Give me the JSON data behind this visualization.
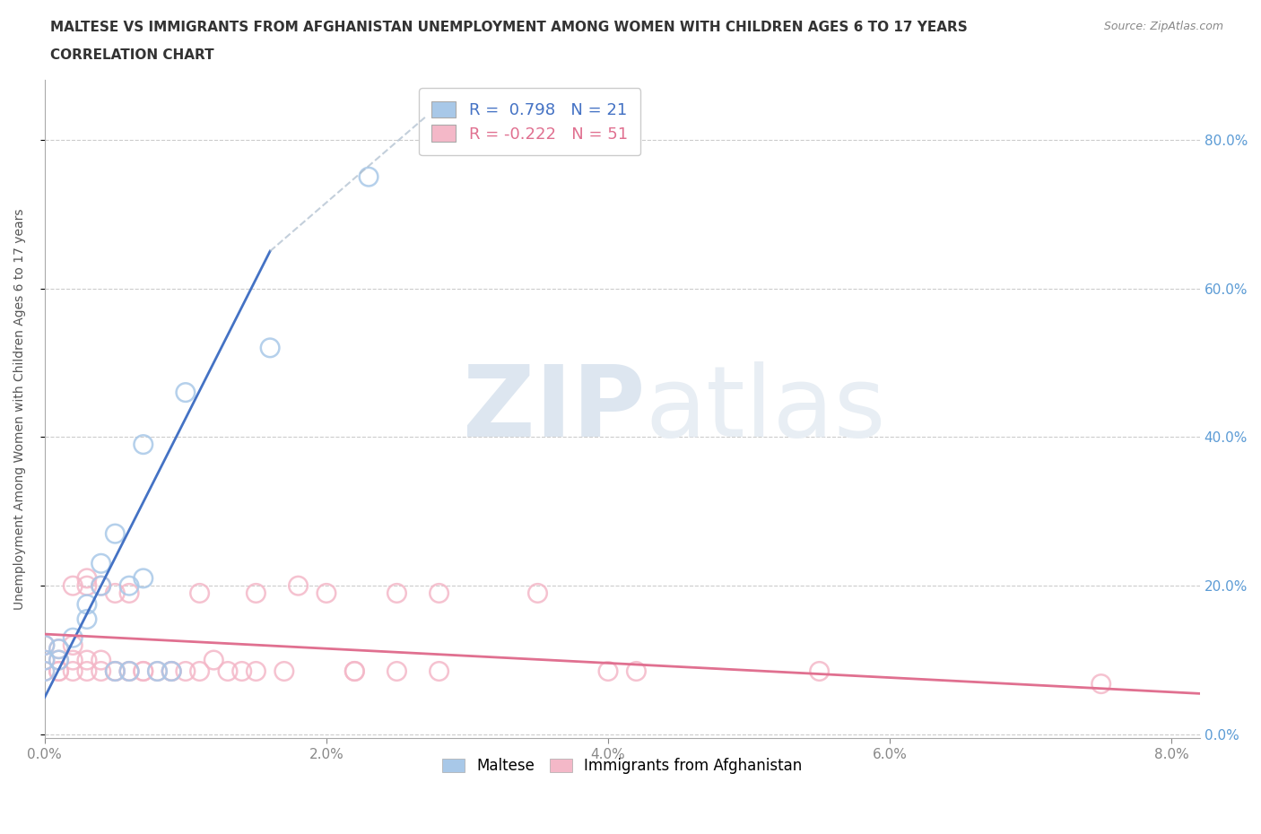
{
  "title_line1": "MALTESE VS IMMIGRANTS FROM AFGHANISTAN UNEMPLOYMENT AMONG WOMEN WITH CHILDREN AGES 6 TO 17 YEARS",
  "title_line2": "CORRELATION CHART",
  "source_text": "Source: ZipAtlas.com",
  "xlim": [
    0.0,
    0.082
  ],
  "ylim": [
    -0.005,
    0.88
  ],
  "ylabel": "Unemployment Among Women with Children Ages 6 to 17 years",
  "legend_maltese_R": "0.798",
  "legend_maltese_N": "21",
  "legend_afghan_R": "-0.222",
  "legend_afghan_N": "51",
  "maltese_color": "#a8c8e8",
  "afghan_color": "#f4b8c8",
  "maltese_line_color": "#4472c4",
  "afghan_line_color": "#e07090",
  "maltese_points": [
    [
      0.0,
      0.12
    ],
    [
      0.0,
      0.1
    ],
    [
      0.0,
      0.085
    ],
    [
      0.001,
      0.115
    ],
    [
      0.001,
      0.1
    ],
    [
      0.002,
      0.13
    ],
    [
      0.003,
      0.155
    ],
    [
      0.003,
      0.175
    ],
    [
      0.004,
      0.2
    ],
    [
      0.004,
      0.23
    ],
    [
      0.005,
      0.27
    ],
    [
      0.005,
      0.085
    ],
    [
      0.006,
      0.085
    ],
    [
      0.006,
      0.2
    ],
    [
      0.007,
      0.21
    ],
    [
      0.007,
      0.39
    ],
    [
      0.008,
      0.085
    ],
    [
      0.009,
      0.085
    ],
    [
      0.01,
      0.46
    ],
    [
      0.016,
      0.52
    ],
    [
      0.023,
      0.75
    ]
  ],
  "afghan_points": [
    [
      0.0,
      0.085
    ],
    [
      0.0,
      0.1
    ],
    [
      0.0,
      0.12
    ],
    [
      0.001,
      0.085
    ],
    [
      0.001,
      0.1
    ],
    [
      0.001,
      0.115
    ],
    [
      0.001,
      0.085
    ],
    [
      0.002,
      0.085
    ],
    [
      0.002,
      0.1
    ],
    [
      0.002,
      0.12
    ],
    [
      0.002,
      0.2
    ],
    [
      0.003,
      0.085
    ],
    [
      0.003,
      0.1
    ],
    [
      0.003,
      0.2
    ],
    [
      0.003,
      0.21
    ],
    [
      0.004,
      0.085
    ],
    [
      0.004,
      0.1
    ],
    [
      0.004,
      0.2
    ],
    [
      0.005,
      0.085
    ],
    [
      0.005,
      0.19
    ],
    [
      0.005,
      0.085
    ],
    [
      0.006,
      0.085
    ],
    [
      0.006,
      0.19
    ],
    [
      0.006,
      0.085
    ],
    [
      0.007,
      0.085
    ],
    [
      0.007,
      0.085
    ],
    [
      0.008,
      0.085
    ],
    [
      0.009,
      0.085
    ],
    [
      0.009,
      0.085
    ],
    [
      0.01,
      0.085
    ],
    [
      0.011,
      0.085
    ],
    [
      0.011,
      0.19
    ],
    [
      0.012,
      0.1
    ],
    [
      0.013,
      0.085
    ],
    [
      0.014,
      0.085
    ],
    [
      0.015,
      0.085
    ],
    [
      0.015,
      0.19
    ],
    [
      0.017,
      0.085
    ],
    [
      0.018,
      0.2
    ],
    [
      0.02,
      0.19
    ],
    [
      0.022,
      0.085
    ],
    [
      0.022,
      0.085
    ],
    [
      0.025,
      0.19
    ],
    [
      0.025,
      0.085
    ],
    [
      0.028,
      0.085
    ],
    [
      0.028,
      0.19
    ],
    [
      0.035,
      0.19
    ],
    [
      0.04,
      0.085
    ],
    [
      0.042,
      0.085
    ],
    [
      0.055,
      0.085
    ],
    [
      0.075,
      0.068
    ]
  ]
}
